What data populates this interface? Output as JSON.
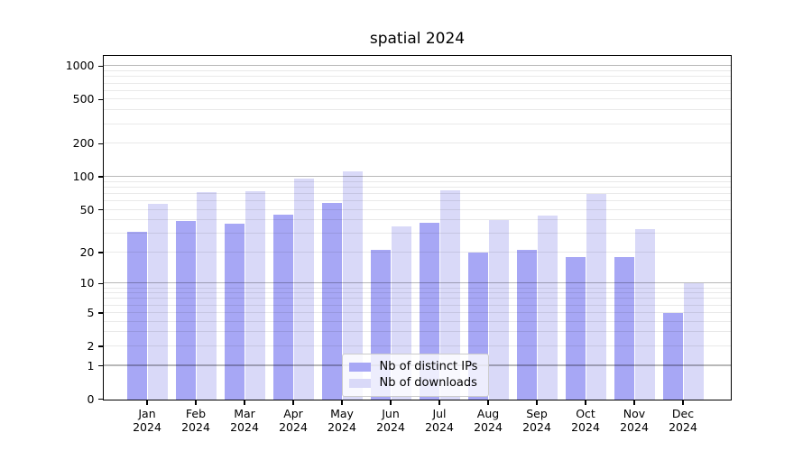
{
  "chart_data": {
    "type": "bar",
    "title": "spatial 2024",
    "xlabels": [
      {
        "month": "Jan",
        "year": "2024"
      },
      {
        "month": "Feb",
        "year": "2024"
      },
      {
        "month": "Mar",
        "year": "2024"
      },
      {
        "month": "Apr",
        "year": "2024"
      },
      {
        "month": "May",
        "year": "2024"
      },
      {
        "month": "Jun",
        "year": "2024"
      },
      {
        "month": "Jul",
        "year": "2024"
      },
      {
        "month": "Aug",
        "year": "2024"
      },
      {
        "month": "Sep",
        "year": "2024"
      },
      {
        "month": "Oct",
        "year": "2024"
      },
      {
        "month": "Nov",
        "year": "2024"
      },
      {
        "month": "Dec",
        "year": "2024"
      }
    ],
    "series": [
      {
        "name": "Nb of distinct IPs",
        "color": "#a7a7f5",
        "values": [
          31,
          39,
          37,
          45,
          58,
          21,
          38,
          20,
          21,
          18,
          18,
          5
        ]
      },
      {
        "name": "Nb of downloads",
        "color": "#d9d9f8",
        "values": [
          57,
          73,
          74,
          96,
          111,
          35,
          75,
          40,
          44,
          70,
          33,
          10
        ]
      }
    ],
    "yscale": "log10(value+1), 0 at axis bottom",
    "yticks": [
      1000,
      500,
      200,
      100,
      50,
      20,
      10,
      5,
      2,
      1,
      0
    ],
    "ylim": [
      0,
      1250
    ],
    "grid": "horizontal, major at 1/10/100/1000, minor at 2-9 per decade",
    "legend_position": "inside bottom-center",
    "major_grid_values": [
      1,
      10,
      100,
      1000
    ]
  }
}
